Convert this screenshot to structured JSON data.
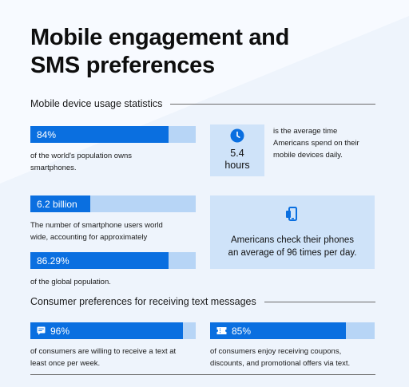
{
  "title_line1": "Mobile engagement and",
  "title_line2": "SMS preferences",
  "section1": {
    "heading": "Mobile device usage statistics",
    "stat_smartphones": {
      "value_label": "84%",
      "fill_fraction": 0.84,
      "caption_line1": "of the world's population owns",
      "caption_line2": "smartphones."
    },
    "time_card": {
      "icon": "clock-icon",
      "value": "5.4",
      "unit": "hours",
      "caption_line1": "is the average time",
      "caption_line2": "Americans spend on their",
      "caption_line3": "mobile devices daily."
    },
    "stat_users": {
      "value_label": "6.2 billion",
      "caption_line1": "The number of smartphone users world",
      "caption_line2": "wide, accounting for approximately"
    },
    "stat_global": {
      "value_label": "86.29%",
      "fill_fraction": 0.8629,
      "caption": "of the global population."
    },
    "phone_card": {
      "icon": "phone-icon",
      "line1": "Americans check their phones",
      "line2": "an average of 96 times per day."
    }
  },
  "section2": {
    "heading": "Consumer preferences for receiving text messages",
    "stat_weekly": {
      "icon": "message-icon",
      "value_label": "96%",
      "fill_fraction": 0.96,
      "caption_line1": "of consumers are willing to receive a text at",
      "caption_line2": "least once per week."
    },
    "stat_coupons": {
      "icon": "ticket-icon",
      "value_label": "85%",
      "fill_fraction": 0.85,
      "caption_line1": "of consumers enjoy receiving coupons,",
      "caption_line2": "discounts, and promotional offers via text."
    }
  },
  "colors": {
    "background": "#eef4fc",
    "bar_fill": "#0a6fe0",
    "bar_track": "#b7d5f6",
    "card": "#cfe3f9"
  }
}
